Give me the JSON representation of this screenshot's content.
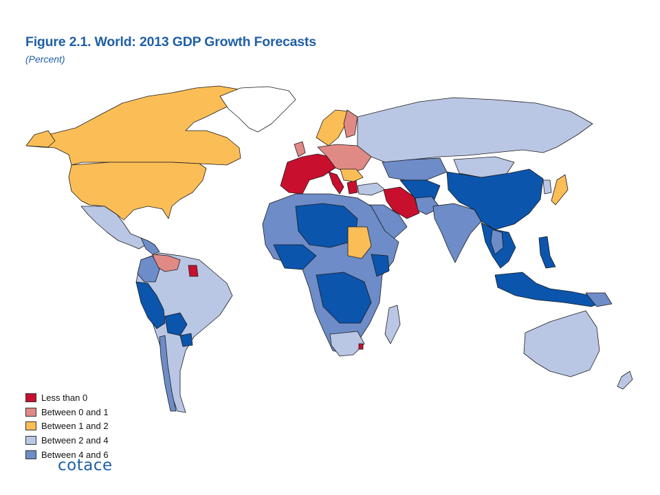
{
  "title": "Figure 2.1.  World: 2013 GDP Growth Forecasts",
  "subtitle": "(Percent)",
  "colors": {
    "less_than_0": "#c8102e",
    "between_0_1": "#e08a86",
    "between_1_2": "#fbbd56",
    "between_2_4": "#b9c6e4",
    "between_4_6": "#6d8cc8",
    "above_6": "#0b55ad",
    "border": "#1a1a1a"
  },
  "legend": [
    {
      "label": "Less than 0",
      "color": "#c8102e"
    },
    {
      "label": "Between 0 and 1",
      "color": "#e08a86"
    },
    {
      "label": "Between 1 and 2",
      "color": "#fbbd56"
    },
    {
      "label": "Between 2 and 4",
      "color": "#b9c6e4"
    },
    {
      "label": "Between 4 and 6",
      "color": "#6d8cc8"
    }
  ],
  "logo_text": "cotace"
}
